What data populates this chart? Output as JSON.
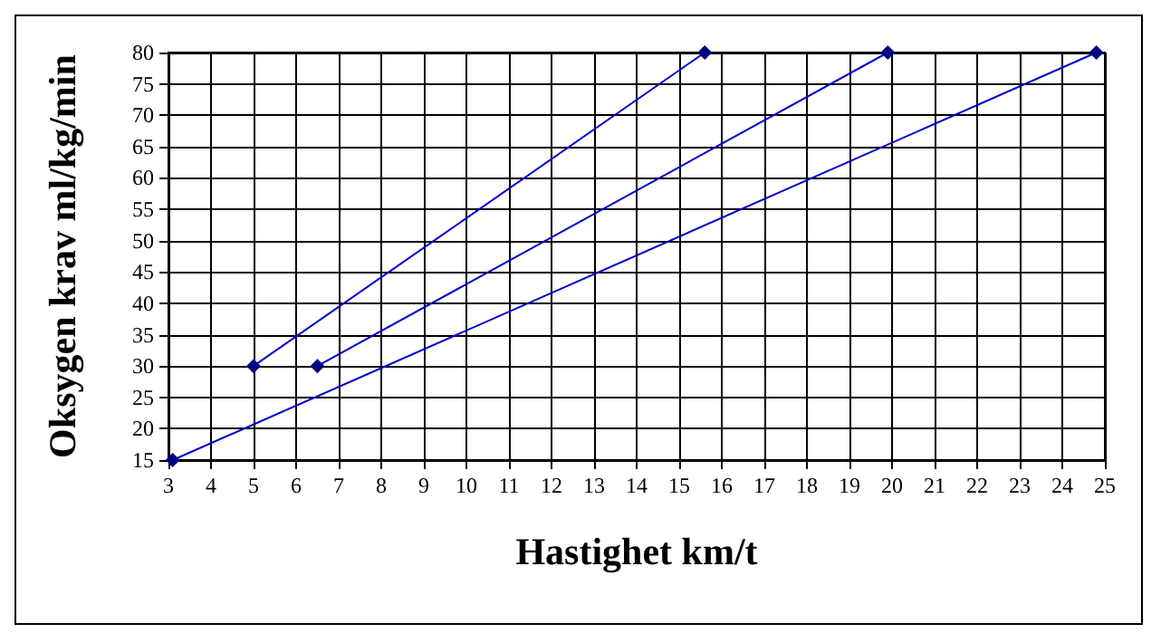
{
  "chart_data": {
    "type": "line",
    "xlabel": "Hastighet km/t",
    "ylabel": "Oksygen krav ml/kg/min",
    "series": [
      {
        "color": "#000080",
        "x": [
          5,
          15.6
        ],
        "values": [
          30,
          80
        ]
      },
      {
        "color": "#000080",
        "x": [
          6.5,
          19.9
        ],
        "values": [
          30,
          80
        ]
      },
      {
        "color": "#000080",
        "x": [
          3.1,
          24.8
        ],
        "values": [
          15,
          80
        ]
      }
    ],
    "xlim": [
      3,
      25
    ],
    "xticks": [
      3,
      4,
      5,
      6,
      7,
      8,
      9,
      10,
      11,
      12,
      13,
      14,
      15,
      16,
      17,
      18,
      19,
      20,
      21,
      22,
      23,
      24,
      25
    ],
    "ylim": [
      15,
      80
    ],
    "yticks": [
      15,
      20,
      25,
      30,
      35,
      40,
      45,
      50,
      55,
      60,
      65,
      70,
      75,
      80
    ],
    "grid": true,
    "marker": "diamond",
    "line_style": "solid"
  }
}
